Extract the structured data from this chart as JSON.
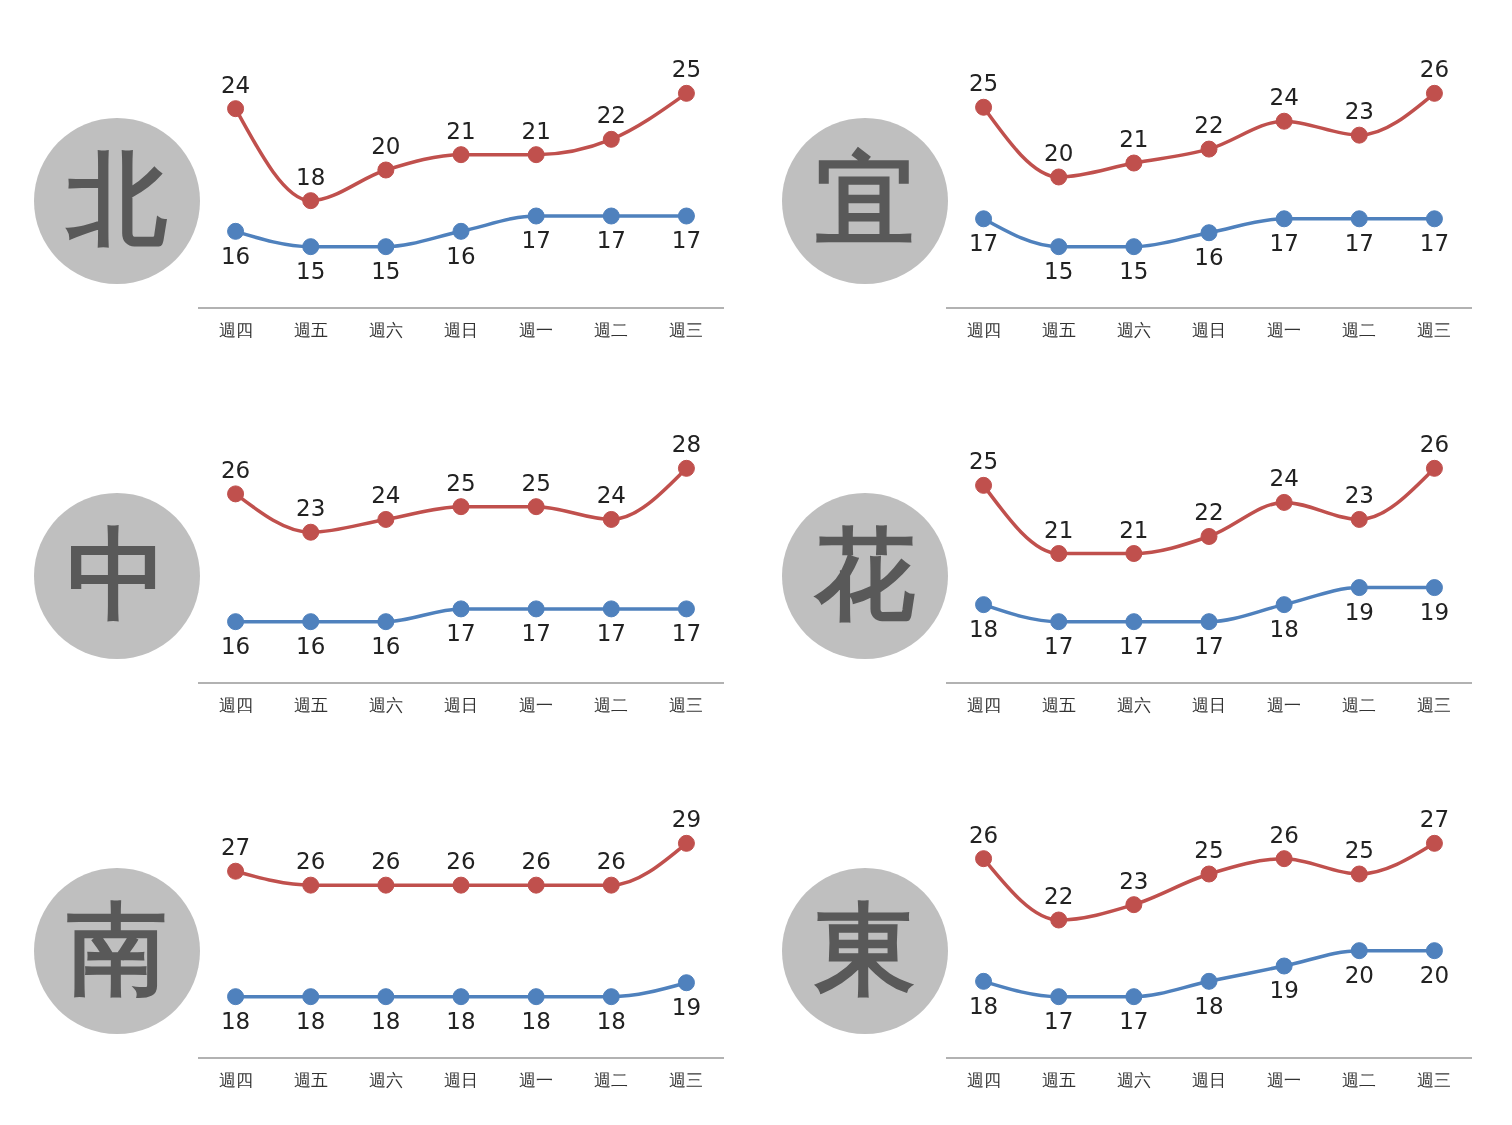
{
  "chart_data": [
    {
      "type": "line",
      "title": "北",
      "categories": [
        "週四",
        "週五",
        "週六",
        "週日",
        "週一",
        "週二",
        "週三"
      ],
      "series": [
        {
          "color": "#c0504d",
          "values": [
            24,
            18,
            20,
            21,
            21,
            22,
            25
          ]
        },
        {
          "color": "#4f81bd",
          "values": [
            16,
            15,
            15,
            16,
            17,
            17,
            17
          ]
        }
      ],
      "data_labels": true,
      "marker": "circle",
      "legend": false,
      "tick_labels": "x"
    },
    {
      "type": "line",
      "title": "宜",
      "categories": [
        "週四",
        "週五",
        "週六",
        "週日",
        "週一",
        "週二",
        "週三"
      ],
      "series": [
        {
          "color": "#c0504d",
          "values": [
            25,
            20,
            21,
            22,
            24,
            23,
            26
          ]
        },
        {
          "color": "#4f81bd",
          "values": [
            17,
            15,
            15,
            16,
            17,
            17,
            17
          ]
        }
      ],
      "data_labels": true,
      "marker": "circle",
      "legend": false,
      "tick_labels": "x"
    },
    {
      "type": "line",
      "title": "中",
      "categories": [
        "週四",
        "週五",
        "週六",
        "週日",
        "週一",
        "週二",
        "週三"
      ],
      "series": [
        {
          "color": "#c0504d",
          "values": [
            26,
            23,
            24,
            25,
            25,
            24,
            28
          ]
        },
        {
          "color": "#4f81bd",
          "values": [
            16,
            16,
            16,
            17,
            17,
            17,
            17
          ]
        }
      ],
      "data_labels": true,
      "marker": "circle",
      "legend": false,
      "tick_labels": "x"
    },
    {
      "type": "line",
      "title": "花",
      "categories": [
        "週四",
        "週五",
        "週六",
        "週日",
        "週一",
        "週二",
        "週三"
      ],
      "series": [
        {
          "color": "#c0504d",
          "values": [
            25,
            21,
            21,
            22,
            24,
            23,
            26
          ]
        },
        {
          "color": "#4f81bd",
          "values": [
            18,
            17,
            17,
            17,
            18,
            19,
            19
          ]
        }
      ],
      "data_labels": true,
      "marker": "circle",
      "legend": false,
      "tick_labels": "x"
    },
    {
      "type": "line",
      "title": "南",
      "categories": [
        "週四",
        "週五",
        "週六",
        "週日",
        "週一",
        "週二",
        "週三"
      ],
      "series": [
        {
          "color": "#c0504d",
          "values": [
            27,
            26,
            26,
            26,
            26,
            26,
            29
          ]
        },
        {
          "color": "#4f81bd",
          "values": [
            18,
            18,
            18,
            18,
            18,
            18,
            19
          ]
        }
      ],
      "data_labels": true,
      "marker": "circle",
      "legend": false,
      "tick_labels": "x"
    },
    {
      "type": "line",
      "title": "東",
      "categories": [
        "週四",
        "週五",
        "週六",
        "週日",
        "週一",
        "週二",
        "週三"
      ],
      "series": [
        {
          "color": "#c0504d",
          "values": [
            26,
            22,
            23,
            25,
            26,
            25,
            27
          ]
        },
        {
          "color": "#4f81bd",
          "values": [
            18,
            17,
            17,
            18,
            19,
            20,
            20
          ]
        }
      ],
      "data_labels": true,
      "marker": "circle",
      "legend": false,
      "tick_labels": "x"
    }
  ]
}
